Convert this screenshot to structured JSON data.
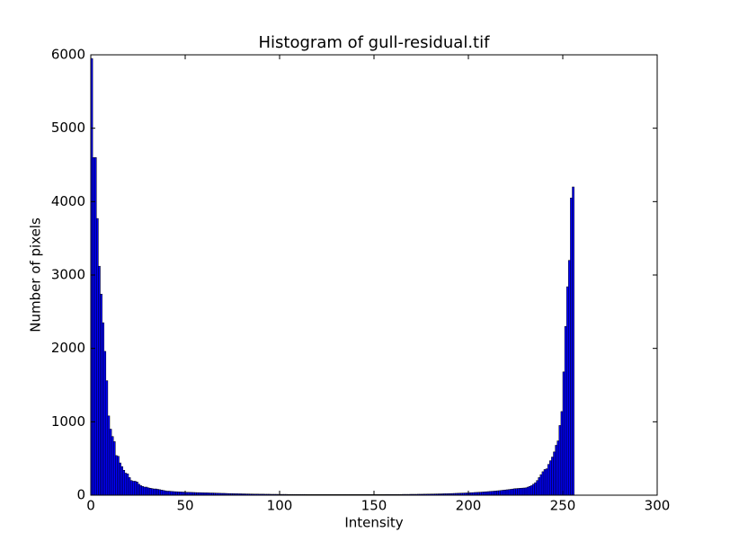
{
  "chart_data": {
    "type": "histogram",
    "title": "Histogram of gull-residual.tif",
    "xlabel": "Intensity",
    "ylabel": "Number of pixels",
    "color": "#0000ff",
    "edgecolor": "#000000",
    "bins": [
      0,
      1,
      2,
      3,
      4,
      5,
      6,
      7,
      8,
      9,
      10,
      11,
      12,
      13,
      14,
      15,
      16,
      17,
      18,
      19,
      20,
      21,
      22,
      23,
      24,
      25,
      26,
      27,
      28,
      29,
      30,
      31,
      32,
      33,
      34,
      35,
      36,
      37,
      38,
      39,
      40,
      41,
      42,
      43,
      44,
      45,
      46,
      47,
      48,
      49,
      50,
      51,
      52,
      53,
      54,
      55,
      56,
      57,
      58,
      59,
      60,
      61,
      62,
      63,
      64,
      65,
      66,
      67,
      68,
      69,
      70,
      71,
      72,
      73,
      74,
      75,
      76,
      77,
      78,
      79,
      80,
      81,
      82,
      83,
      84,
      85,
      86,
      87,
      88,
      89,
      90,
      91,
      92,
      93,
      94,
      95,
      96,
      97,
      98,
      99,
      100,
      101,
      102,
      103,
      104,
      105,
      106,
      107,
      108,
      109,
      110,
      111,
      112,
      113,
      114,
      115,
      116,
      117,
      118,
      119,
      120,
      121,
      122,
      123,
      124,
      125,
      126,
      127,
      128,
      129,
      130,
      131,
      132,
      133,
      134,
      135,
      136,
      137,
      138,
      139,
      140,
      141,
      142,
      143,
      144,
      145,
      146,
      147,
      148,
      149,
      150,
      151,
      152,
      153,
      154,
      155,
      156,
      157,
      158,
      159,
      160,
      161,
      162,
      163,
      164,
      165,
      166,
      167,
      168,
      169,
      170,
      171,
      172,
      173,
      174,
      175,
      176,
      177,
      178,
      179,
      180,
      181,
      182,
      183,
      184,
      185,
      186,
      187,
      188,
      189,
      190,
      191,
      192,
      193,
      194,
      195,
      196,
      197,
      198,
      199,
      200,
      201,
      202,
      203,
      204,
      205,
      206,
      207,
      208,
      209,
      210,
      211,
      212,
      213,
      214,
      215,
      216,
      217,
      218,
      219,
      220,
      221,
      222,
      223,
      224,
      225,
      226,
      227,
      228,
      229,
      230,
      231,
      232,
      233,
      234,
      235,
      236,
      237,
      238,
      239,
      240,
      241,
      242,
      243,
      244,
      245,
      246,
      247,
      248,
      249,
      250,
      251,
      252,
      253,
      254,
      255,
      256
    ],
    "counts": [
      5950,
      4600,
      4600,
      3770,
      3120,
      2740,
      2350,
      1960,
      1560,
      1080,
      900,
      800,
      730,
      540,
      530,
      440,
      390,
      340,
      300,
      290,
      240,
      200,
      190,
      190,
      180,
      150,
      130,
      120,
      110,
      110,
      100,
      95,
      90,
      85,
      85,
      80,
      75,
      70,
      65,
      60,
      55,
      55,
      52,
      50,
      48,
      47,
      45,
      44,
      43,
      42,
      40,
      40,
      39,
      38,
      37,
      36,
      35,
      35,
      34,
      33,
      32,
      32,
      31,
      30,
      30,
      29,
      28,
      27,
      26,
      25,
      25,
      24,
      23,
      22,
      22,
      21,
      20,
      20,
      19,
      19,
      18,
      18,
      17,
      17,
      16,
      16,
      15,
      15,
      15,
      14,
      14,
      14,
      13,
      13,
      13,
      12,
      12,
      12,
      12,
      11,
      11,
      11,
      11,
      11,
      10,
      10,
      10,
      10,
      10,
      10,
      10,
      10,
      10,
      10,
      9,
      9,
      9,
      9,
      9,
      9,
      9,
      9,
      9,
      9,
      9,
      9,
      9,
      9,
      9,
      9,
      9,
      9,
      9,
      9,
      9,
      9,
      9,
      9,
      9,
      9,
      9,
      9,
      9,
      9,
      9,
      9,
      9,
      9,
      9,
      9,
      9,
      9,
      9,
      9,
      9,
      9,
      10,
      10,
      10,
      10,
      10,
      10,
      10,
      10,
      10,
      11,
      11,
      11,
      11,
      12,
      12,
      12,
      12,
      13,
      13,
      13,
      14,
      14,
      15,
      15,
      16,
      16,
      17,
      17,
      18,
      18,
      19,
      20,
      20,
      21,
      22,
      23,
      24,
      25,
      26,
      27,
      28,
      29,
      30,
      31,
      33,
      34,
      35,
      37,
      38,
      40,
      41,
      43,
      45,
      47,
      49,
      51,
      53,
      55,
      57,
      60,
      62,
      65,
      68,
      71,
      74,
      77,
      80,
      84,
      88,
      90,
      92,
      94,
      96,
      98,
      100,
      110,
      120,
      130,
      150,
      170,
      200,
      240,
      280,
      320,
      350,
      360,
      420,
      470,
      520,
      590,
      680,
      740,
      950,
      1140,
      1680,
      2300,
      2840,
      3200,
      4050,
      4200
    ],
    "xlim": [
      0,
      300
    ],
    "ylim": [
      0,
      6000
    ],
    "xticks": [
      0,
      50,
      100,
      150,
      200,
      250,
      300
    ],
    "yticks": [
      0,
      1000,
      2000,
      3000,
      4000,
      5000,
      6000
    ]
  }
}
